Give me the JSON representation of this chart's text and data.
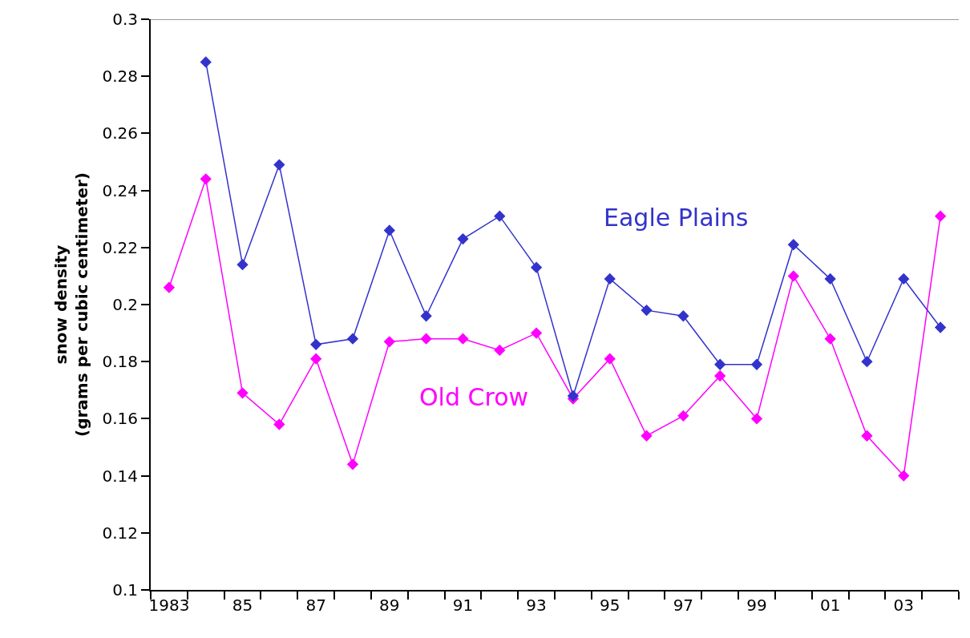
{
  "chart_data": {
    "type": "line",
    "ylabel": "snow density\n(grams per cubic centimeter)",
    "categories": [
      "1983",
      null,
      "85",
      null,
      "87",
      null,
      "89",
      null,
      "91",
      null,
      "93",
      null,
      "95",
      null,
      "97",
      null,
      "99",
      null,
      "01",
      null,
      "03",
      null
    ],
    "series": [
      {
        "name": "Eagle Plains",
        "color": "#3333cc",
        "values": [
          null,
          0.285,
          0.214,
          0.249,
          0.186,
          0.188,
          0.226,
          0.196,
          0.223,
          0.231,
          0.213,
          0.168,
          0.209,
          0.198,
          0.196,
          0.179,
          0.179,
          0.221,
          0.209,
          0.18,
          0.209,
          0.192
        ]
      },
      {
        "name": "Old Crow",
        "color": "#ff00ff",
        "values": [
          0.206,
          0.244,
          0.169,
          0.158,
          0.181,
          0.144,
          0.187,
          0.188,
          0.188,
          0.184,
          0.19,
          0.167,
          0.181,
          0.154,
          0.161,
          0.175,
          0.16,
          0.21,
          0.188,
          0.154,
          0.14,
          0.231
        ]
      }
    ],
    "ylim": [
      0.1,
      0.3
    ],
    "yticks": [
      0.1,
      0.12,
      0.14,
      0.16,
      0.18,
      0.2,
      0.22,
      0.24,
      0.26,
      0.28,
      0.3
    ],
    "marker": "diamond",
    "line_style": "solid",
    "legend": false
  }
}
